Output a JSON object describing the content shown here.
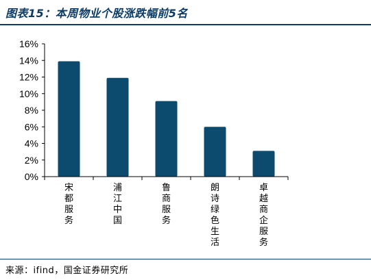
{
  "figure": {
    "title": "图表15：本周物业个股涨跌幅前5名",
    "source": "来源：ifind，国金证券研究所"
  },
  "colors": {
    "bar": "#0c4a6e",
    "accent": "#0c3c66",
    "axis": "#000000"
  },
  "chart_data": {
    "type": "bar",
    "categories": [
      "宋都服务",
      "浦江中国",
      "鲁商服务",
      "朗诗绿色生活",
      "卓越商企服务"
    ],
    "values": [
      13.9,
      11.9,
      9.1,
      6.0,
      3.1
    ],
    "value_unit": "%",
    "ylim": [
      0,
      16
    ],
    "yticks": [
      "0%",
      "2%",
      "4%",
      "6%",
      "8%",
      "10%",
      "12%",
      "14%",
      "16%"
    ],
    "xlabel": "",
    "ylabel": "",
    "grid": false,
    "legend": "none"
  }
}
